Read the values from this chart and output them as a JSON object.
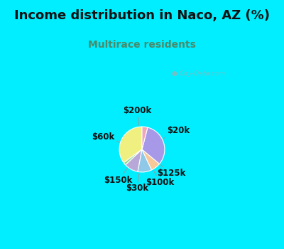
{
  "title": "Income distribution in Naco, AZ (%)",
  "subtitle": "Multirace residents",
  "title_color": "#111111",
  "subtitle_color": "#4a8a6a",
  "bg_cyan": "#00eeff",
  "bg_chart": "#e8f8f0",
  "watermark": "City-Data.com",
  "labels": [
    "$20k",
    "$125k",
    "$100k",
    "$30k",
    "$150k",
    "$60k",
    "$200k"
  ],
  "sizes": [
    35,
    2,
    10,
    10,
    7,
    32,
    4
  ],
  "colors": [
    "#f0f080",
    "#90d890",
    "#b8a8d8",
    "#90c8e8",
    "#f8c898",
    "#a898e8",
    "#f0a8b8"
  ],
  "startangle": 90,
  "label_fontsize": 8.5,
  "title_fontsize": 13,
  "subtitle_fontsize": 10
}
